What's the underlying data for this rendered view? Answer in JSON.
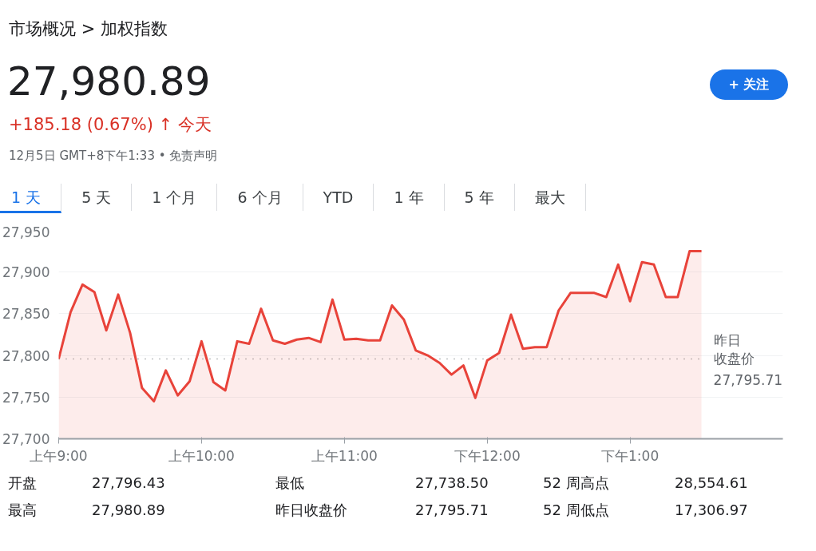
{
  "chart_data": {
    "type": "area",
    "title": "市场概况 > 加权指数",
    "subtitle": "27,980.89",
    "annotations": [
      "+185.18 (0.67%) ↑ 今天",
      "12月5日 GMT+8下午1:33 • 免责声明",
      "+ 关注",
      "1 天",
      "5 天",
      "1 个月",
      "6 个月",
      "YTD",
      "1 年",
      "5 年",
      "最大",
      "开盘",
      "27,796.43",
      "最低",
      "27,738.50",
      "52 周高点",
      "28,554.61",
      "最高",
      "27,980.89",
      "昨日收盘价",
      "27,795.71",
      "52 周低点",
      "17,306.97"
    ],
    "categories": [
      "上午9:00",
      null,
      null,
      null,
      null,
      null,
      null,
      null,
      null,
      null,
      null,
      null,
      "上午10:00",
      null,
      null,
      null,
      null,
      null,
      null,
      null,
      null,
      null,
      null,
      null,
      "上午11:00",
      null,
      null,
      null,
      null,
      null,
      null,
      null,
      null,
      null,
      null,
      null,
      "下午12:00",
      null,
      null,
      null,
      null,
      null,
      null,
      null,
      null,
      null,
      null,
      null,
      "下午1:00",
      null,
      null,
      null,
      null,
      null,
      null
    ],
    "series": [
      {
        "color": "#e8433a",
        "values": [
          27796,
          27852,
          27885,
          27876,
          27830,
          27873,
          27827,
          27761,
          27745,
          27782,
          27752,
          27769,
          27817,
          27768,
          27758,
          27817,
          27814,
          27856,
          27818,
          27814,
          27819,
          27821,
          27816,
          27867,
          27819,
          27820,
          27818,
          27818,
          27860,
          27843,
          27806,
          27800,
          27791,
          27777,
          27788,
          27749,
          27794,
          27803,
          27849,
          27808,
          27810,
          27810,
          27854,
          27875,
          27875,
          27875,
          27870,
          27909,
          27865,
          27912,
          27909,
          27870,
          27870,
          27925,
          27925
        ]
      }
    ],
    "ylim": [
      27700,
      27950
    ],
    "yticks": [
      {
        "value": 27700,
        "label": "27,700"
      },
      {
        "value": 27750,
        "label": "27,750"
      },
      {
        "value": 27800,
        "label": "27,800"
      },
      {
        "value": 27850,
        "label": "27,850"
      },
      {
        "value": 27900,
        "label": "27,900"
      },
      {
        "value": 27950,
        "label": "27,950"
      }
    ],
    "ref_lines": [
      {
        "axis": "y",
        "value": 27795.71,
        "label": "昨日收盘价\n27,795.71",
        "color": "#80868b",
        "line_style": "dotted"
      }
    ],
    "grid": "y"
  }
}
